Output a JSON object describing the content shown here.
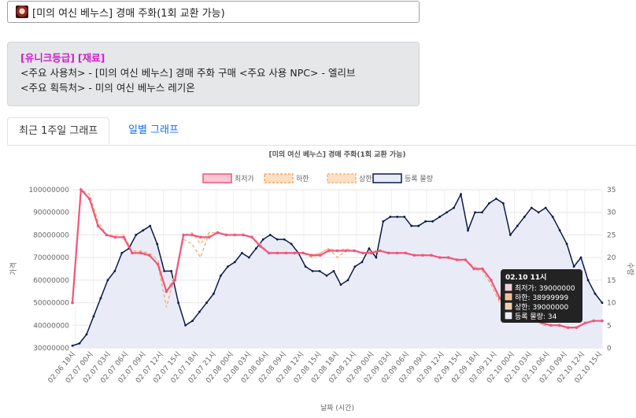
{
  "header": {
    "item_name": "[미의 여신 베누스] 경매 주화(1회 교환 가능)"
  },
  "info": {
    "grade": "[유니크등급]",
    "category": "[재료]",
    "line1": "<주요 사용처> - [미의 여신 베누스] 경매 주화 구매 <주요 사용 NPC> - 엘리브",
    "line2": "<주요 획득처> - 미의 여신 베누스 레기온"
  },
  "tabs": [
    {
      "label": "최근 1주일 그래프",
      "active": true
    },
    {
      "label": "일별 그래프",
      "active": false
    }
  ],
  "colors": {
    "min_price": "#f0567a",
    "lower": "#f4a460",
    "upper": "#f6b27a",
    "volume": "#0b1a4a",
    "volume_fill": "#e9ecf7",
    "grade": "#d01bd1",
    "tab_link": "#0d6efd"
  },
  "chart_data": {
    "type": "line",
    "title": "[미의 여신 베누스] 경매 주화(1회 교환 가능)",
    "xlabel": "날짜 (시간)",
    "ylabel_left": "가격",
    "ylabel_right": "수량",
    "legend_position": "top-center",
    "grid": true,
    "ylim_left": [
      30000000,
      100000000
    ],
    "ylim_right": [
      0,
      35
    ],
    "left_ticks": [
      "100000000",
      "90000000",
      "80000000",
      "70000000",
      "60000000",
      "50000000",
      "40000000",
      "30000000"
    ],
    "right_ticks": [
      "35",
      "30",
      "25",
      "20",
      "15",
      "10",
      "5",
      "0"
    ],
    "x_labels": [
      "02.06 18시",
      "02.07 00시",
      "02.07 03시",
      "02.07 06시",
      "02.07 09시",
      "02.07 12시",
      "02.07 15시",
      "02.07 18시",
      "02.07 21시",
      "02.08 00시",
      "02.08 03시",
      "02.08 06시",
      "02.08 09시",
      "02.08 12시",
      "02.08 15시",
      "02.08 18시",
      "02.08 21시",
      "02.09 00시",
      "02.09 03시",
      "02.09 06시",
      "02.09 09시",
      "02.09 12시",
      "02.09 15시",
      "02.09 18시",
      "02.09 21시",
      "02.10 00시",
      "02.10 03시",
      "02.10 06시",
      "02.10 09시",
      "02.10 12시",
      "02.10 15시"
    ],
    "series": [
      {
        "name": "최저가",
        "axis": "left",
        "values": [
          50000000,
          100000000,
          96000000,
          84000000,
          80000000,
          79000000,
          79000000,
          72000000,
          72000000,
          71000000,
          67000000,
          55000000,
          60000000,
          80000000,
          80000000,
          79000000,
          79000000,
          81000000,
          80000000,
          80000000,
          80000000,
          79000000,
          75000000,
          72000000,
          72000000,
          72000000,
          72000000,
          72000000,
          71000000,
          71000000,
          73000000,
          73000000,
          73000000,
          73000000,
          72000000,
          72000000,
          73000000,
          72000000,
          72000000,
          72000000,
          71000000,
          71000000,
          71000000,
          70000000,
          70000000,
          69000000,
          69000000,
          65000000,
          65000000,
          60000000,
          52000000,
          48000000,
          46000000,
          44000000,
          43000000,
          41000000,
          40000000,
          40000000,
          39000000,
          39000000,
          41000000,
          42000000,
          42000000
        ]
      },
      {
        "name": "하한",
        "axis": "left",
        "values": [
          50000000,
          100000000,
          98000000,
          86000000,
          80000000,
          79000000,
          79000000,
          72000000,
          73000000,
          71000000,
          67000000,
          48000000,
          62000000,
          78000000,
          76000000,
          70000000,
          81000000,
          81000000,
          80000000,
          80000000,
          80000000,
          79000000,
          75000000,
          72000000,
          72000000,
          72000000,
          72000000,
          72000000,
          70000000,
          72000000,
          74000000,
          70000000,
          73000000,
          73000000,
          72000000,
          72000000,
          73000000,
          72000000,
          72000000,
          72000000,
          71000000,
          71000000,
          71000000,
          70000000,
          70000000,
          69000000,
          69000000,
          65000000,
          64000000,
          58000000,
          50000000,
          46000000,
          44000000,
          43000000,
          43000000,
          40000000,
          40000000,
          40000000,
          39000000,
          39000000,
          41000000,
          42000000,
          42000000
        ]
      },
      {
        "name": "상한",
        "axis": "left",
        "values": [
          50000000,
          100000000,
          98000000,
          86000000,
          80000000,
          80000000,
          80000000,
          73000000,
          73000000,
          72000000,
          69000000,
          55000000,
          62000000,
          80000000,
          81000000,
          76000000,
          81000000,
          81000000,
          80000000,
          80000000,
          80000000,
          79000000,
          76000000,
          72000000,
          72000000,
          72000000,
          72000000,
          72000000,
          71000000,
          72000000,
          74000000,
          73000000,
          74000000,
          73000000,
          72000000,
          73000000,
          73000000,
          72000000,
          72000000,
          72000000,
          71000000,
          71000000,
          71000000,
          70000000,
          70000000,
          69000000,
          69000000,
          66000000,
          65000000,
          60000000,
          53000000,
          49000000,
          47000000,
          44000000,
          43000000,
          41000000,
          40000000,
          40000000,
          39000000,
          39000000,
          41000000,
          42000000,
          42000000
        ]
      },
      {
        "name": "등록 물량",
        "axis": "right",
        "values": [
          0.5,
          1,
          3,
          7,
          11,
          15,
          17,
          21,
          22,
          25,
          26,
          27,
          23,
          17,
          17,
          10,
          5,
          6,
          8,
          10,
          12,
          16,
          18,
          19,
          21,
          20,
          22,
          24,
          25,
          24,
          24,
          23,
          21,
          18,
          17,
          17,
          16,
          17,
          14,
          15,
          18,
          19,
          22,
          20,
          28,
          29,
          29,
          29,
          27,
          27,
          28,
          28,
          29,
          30,
          31,
          34,
          26,
          30,
          30,
          32,
          33,
          32,
          25,
          27,
          29,
          31,
          30,
          31,
          29,
          26,
          23,
          18,
          20,
          15,
          12,
          10
        ]
      }
    ],
    "tooltip": {
      "title": "02.10 11시",
      "lines": [
        "최저가: 39000000",
        "하한: 38999999",
        "상한: 39000000",
        "등록 물량: 34"
      ]
    }
  }
}
